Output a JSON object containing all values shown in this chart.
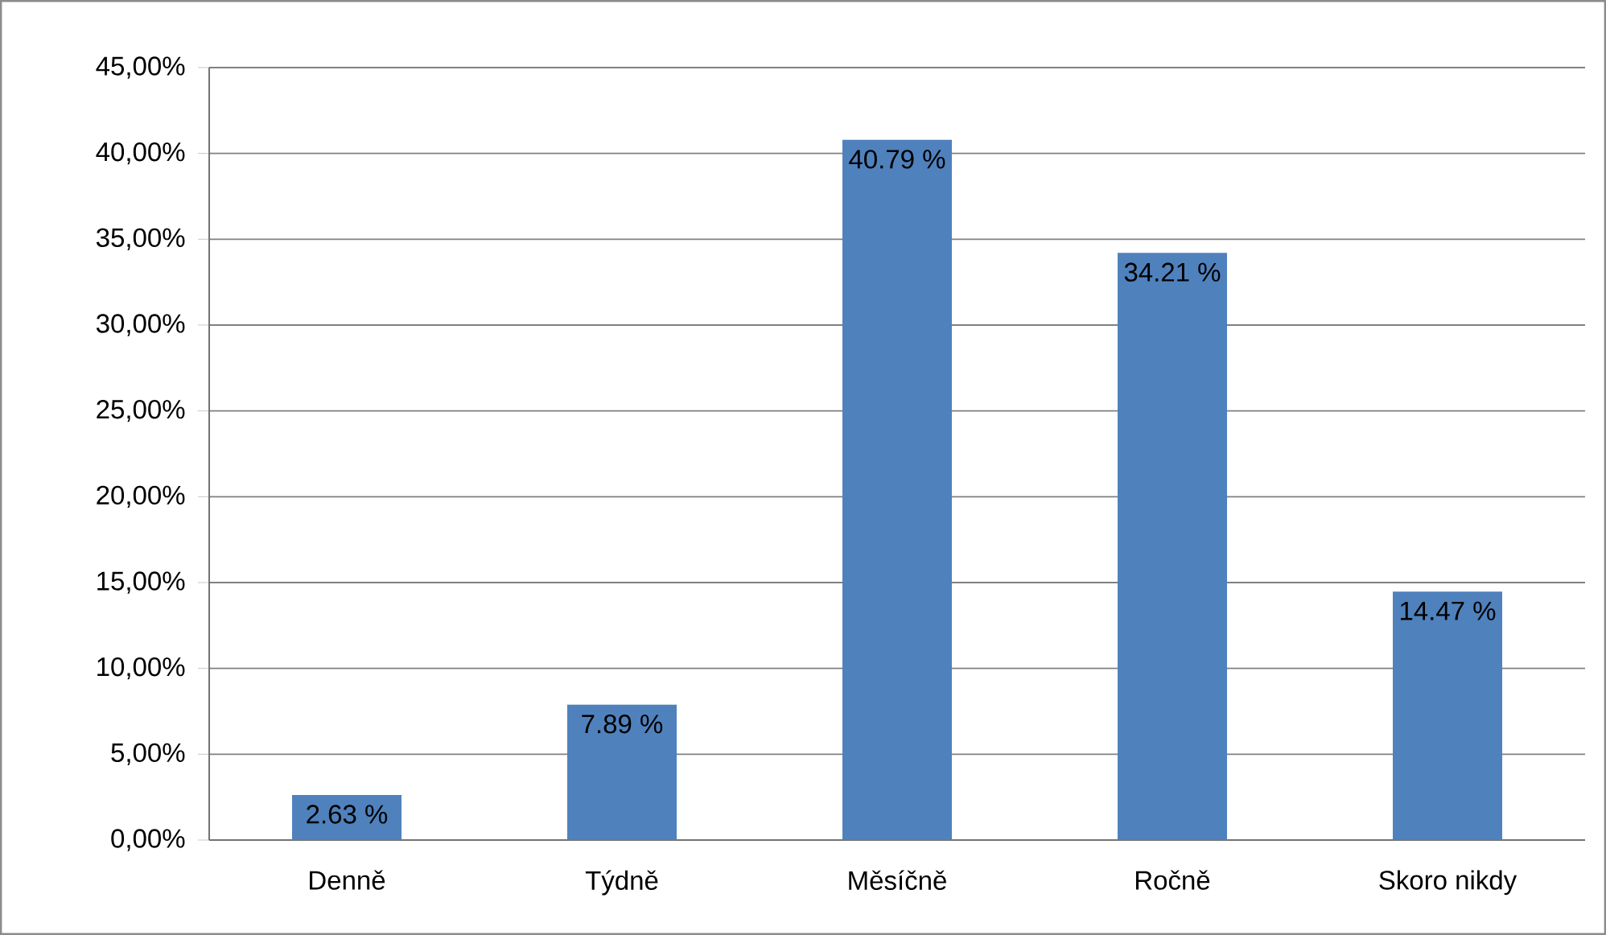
{
  "chart_data": {
    "type": "bar",
    "categories": [
      "Denně",
      "Týdně",
      "Měsíčně",
      "Ročně",
      "Skoro nikdy"
    ],
    "values": [
      2.63,
      7.89,
      40.79,
      34.21,
      14.47
    ],
    "value_labels": [
      "2.63 %",
      "7.89 %",
      "40.79 %",
      "34.21 %",
      "14.47 %"
    ],
    "color": "#4f81bd",
    "ylim": [
      0,
      45
    ],
    "yticks": [
      {
        "value": 0,
        "label": "0,00%"
      },
      {
        "value": 5,
        "label": "5,00%"
      },
      {
        "value": 10,
        "label": "10,00%"
      },
      {
        "value": 15,
        "label": "15,00%"
      },
      {
        "value": 20,
        "label": "20,00%"
      },
      {
        "value": 25,
        "label": "25,00%"
      },
      {
        "value": 30,
        "label": "30,00%"
      },
      {
        "value": 35,
        "label": "35,00%"
      },
      {
        "value": 40,
        "label": "40,00%"
      },
      {
        "value": 45,
        "label": "45,00%"
      }
    ],
    "grid": "y"
  }
}
